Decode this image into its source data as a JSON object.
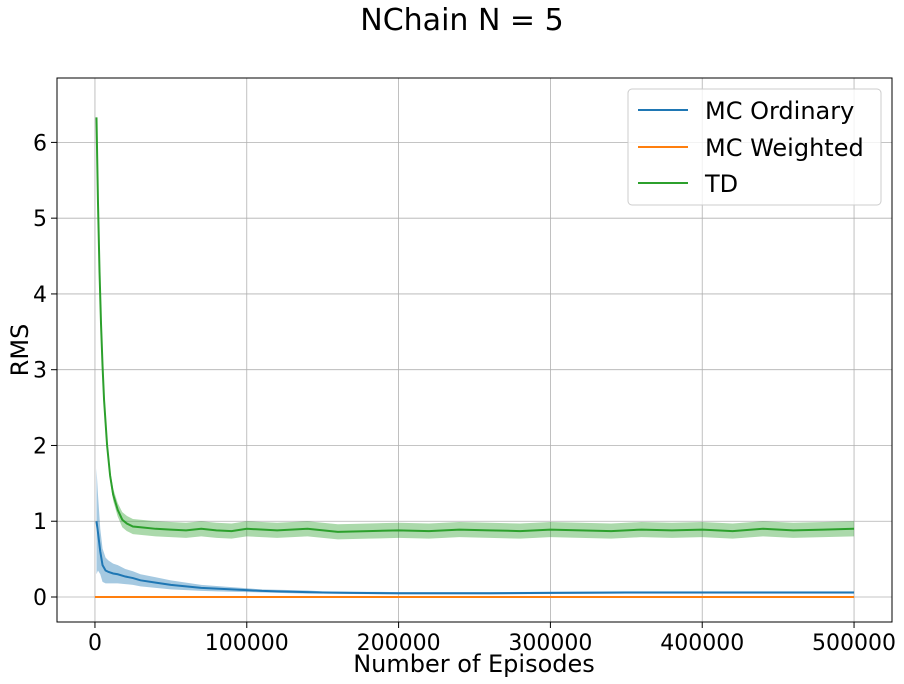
{
  "chart_data": {
    "type": "line",
    "title": "NChain N = 5",
    "xlabel": "Number of Episodes",
    "ylabel": "RMS",
    "xlim": [
      -25000,
      525000
    ],
    "ylim": [
      -0.33,
      6.85
    ],
    "xticks": [
      0,
      100000,
      200000,
      300000,
      400000,
      500000
    ],
    "yticks": [
      0,
      1,
      2,
      3,
      4,
      5,
      6
    ],
    "grid": true,
    "legend_position": "top-right",
    "series": [
      {
        "name": "MC Ordinary",
        "color": "#1f77b4",
        "band_color": "#1f77b4",
        "x": [
          1000,
          2000,
          3500,
          5000,
          7000,
          9000,
          12000,
          15000,
          20000,
          25000,
          30000,
          40000,
          50000,
          60000,
          70000,
          80000,
          90000,
          100000,
          110000,
          120000,
          130000,
          140000,
          150000,
          170000,
          200000,
          230000,
          260000,
          300000,
          350000,
          400000,
          450000,
          500000
        ],
        "y": [
          1.0,
          0.85,
          0.6,
          0.42,
          0.35,
          0.33,
          0.31,
          0.3,
          0.27,
          0.25,
          0.22,
          0.19,
          0.16,
          0.14,
          0.12,
          0.11,
          0.1,
          0.09,
          0.08,
          0.075,
          0.07,
          0.065,
          0.06,
          0.055,
          0.05,
          0.05,
          0.05,
          0.055,
          0.06,
          0.06,
          0.06,
          0.06
        ],
        "band": [
          0.7,
          0.5,
          0.3,
          0.22,
          0.17,
          0.15,
          0.13,
          0.12,
          0.1,
          0.09,
          0.08,
          0.07,
          0.06,
          0.05,
          0.04,
          0.035,
          0.03,
          0.025,
          0.02,
          0.02,
          0.02,
          0.02,
          0.015,
          0.015,
          0.015,
          0.015,
          0.015,
          0.015,
          0.015,
          0.015,
          0.015,
          0.015
        ]
      },
      {
        "name": "MC Weighted",
        "color": "#ff7f0e",
        "x": [
          0,
          500000
        ],
        "y": [
          0.0,
          0.0
        ]
      },
      {
        "name": "TD",
        "color": "#2ca02c",
        "band_color": "#2ca02c",
        "x": [
          1000,
          2000,
          3000,
          4000,
          5000,
          6000,
          8000,
          10000,
          12000,
          15000,
          18000,
          21000,
          25000,
          30000,
          40000,
          50000,
          60000,
          70000,
          80000,
          90000,
          100000,
          120000,
          140000,
          160000,
          180000,
          200000,
          220000,
          240000,
          260000,
          280000,
          300000,
          320000,
          340000,
          360000,
          380000,
          400000,
          420000,
          440000,
          460000,
          480000,
          500000
        ],
        "y": [
          6.33,
          5.2,
          4.3,
          3.6,
          3.05,
          2.6,
          2.0,
          1.6,
          1.35,
          1.15,
          1.02,
          0.97,
          0.93,
          0.92,
          0.9,
          0.89,
          0.88,
          0.9,
          0.88,
          0.87,
          0.9,
          0.88,
          0.9,
          0.86,
          0.87,
          0.88,
          0.87,
          0.89,
          0.88,
          0.87,
          0.89,
          0.88,
          0.87,
          0.89,
          0.88,
          0.89,
          0.87,
          0.9,
          0.88,
          0.89,
          0.9
        ],
        "band": [
          0.05,
          0.05,
          0.05,
          0.05,
          0.05,
          0.05,
          0.06,
          0.07,
          0.08,
          0.09,
          0.1,
          0.1,
          0.1,
          0.1,
          0.1,
          0.1,
          0.1,
          0.1,
          0.1,
          0.1,
          0.1,
          0.1,
          0.1,
          0.1,
          0.1,
          0.1,
          0.1,
          0.1,
          0.1,
          0.1,
          0.1,
          0.1,
          0.1,
          0.1,
          0.1,
          0.1,
          0.1,
          0.1,
          0.1,
          0.1,
          0.1
        ]
      }
    ]
  }
}
